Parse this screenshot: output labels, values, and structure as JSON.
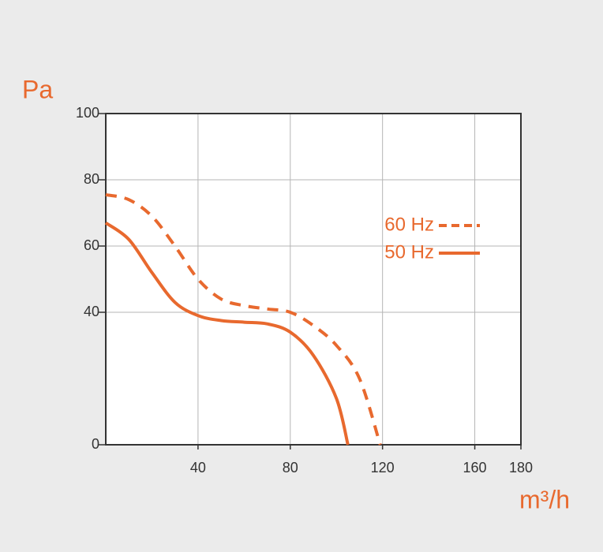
{
  "chart_data": {
    "type": "line",
    "ylabel": "Pa",
    "xlabel": "m³/h",
    "xlim": [
      0,
      180
    ],
    "xticks": [
      40,
      80,
      120,
      160,
      180
    ],
    "ylim": [
      0,
      100
    ],
    "yticks": [
      0,
      40,
      60,
      80,
      100
    ],
    "grid": true,
    "series": [
      {
        "name": "60 Hz",
        "color": "#e8692e",
        "line_style": "dashed",
        "x": [
          0,
          10,
          20,
          30,
          40,
          50,
          60,
          70,
          80,
          90,
          100,
          110,
          119
        ],
        "values": [
          75.5,
          74,
          69,
          60,
          50,
          44,
          42,
          41,
          40,
          36,
          30,
          20,
          0
        ]
      },
      {
        "name": "50 Hz",
        "color": "#e8692e",
        "line_style": "solid",
        "x": [
          0,
          10,
          20,
          30,
          40,
          50,
          60,
          70,
          80,
          90,
          100,
          105
        ],
        "values": [
          67,
          62,
          52,
          43,
          39,
          37.5,
          37,
          36.5,
          34,
          27,
          14,
          0
        ]
      }
    ]
  }
}
